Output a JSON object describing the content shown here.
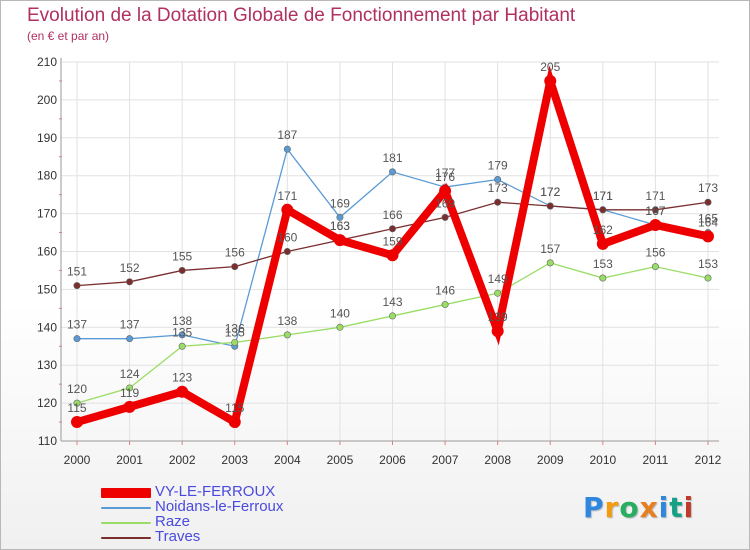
{
  "chart_data": {
    "type": "line",
    "title": "Evolution de la Dotation Globale de Fonctionnement par Habitant",
    "subtitle": "(en € et par an)",
    "categories": [
      "2000",
      "2001",
      "2002",
      "2003",
      "2004",
      "2005",
      "2006",
      "2007",
      "2008",
      "2009",
      "2010",
      "2011",
      "2012"
    ],
    "ylim": [
      110,
      210
    ],
    "yticks": [
      110,
      120,
      130,
      140,
      150,
      160,
      170,
      180,
      190,
      200,
      210
    ],
    "grid": true,
    "series": [
      {
        "name": "VY-LE-FERROUX",
        "color": "#ee0000",
        "values": [
          115,
          119,
          123,
          115,
          171,
          163,
          159,
          176,
          139,
          205,
          162,
          167,
          164
        ]
      },
      {
        "name": "Noidans-le-Ferroux",
        "color": "#5b9bd5",
        "values": [
          137,
          137,
          138,
          135,
          187,
          169,
          181,
          177,
          179,
          172,
          171,
          167,
          165
        ]
      },
      {
        "name": "Raze",
        "color": "#99dd66",
        "values": [
          120,
          124,
          135,
          136,
          138,
          140,
          143,
          146,
          149,
          157,
          153,
          156,
          153
        ]
      },
      {
        "name": "Traves",
        "color": "#7a2e2e",
        "values": [
          151,
          152,
          155,
          156,
          160,
          163,
          166,
          169,
          173,
          172,
          171,
          171,
          173
        ]
      }
    ]
  },
  "logo": {
    "text": "Proxiti",
    "letters": [
      {
        "ch": "P",
        "color": "#2e86de"
      },
      {
        "ch": "r",
        "color": "#f39c12"
      },
      {
        "ch": "o",
        "color": "#27ae60"
      },
      {
        "ch": "x",
        "color": "#e67e22"
      },
      {
        "ch": "i",
        "color": "#2e86de"
      },
      {
        "ch": "t",
        "color": "#16a085"
      },
      {
        "ch": "i",
        "color": "#c0392b"
      }
    ]
  }
}
